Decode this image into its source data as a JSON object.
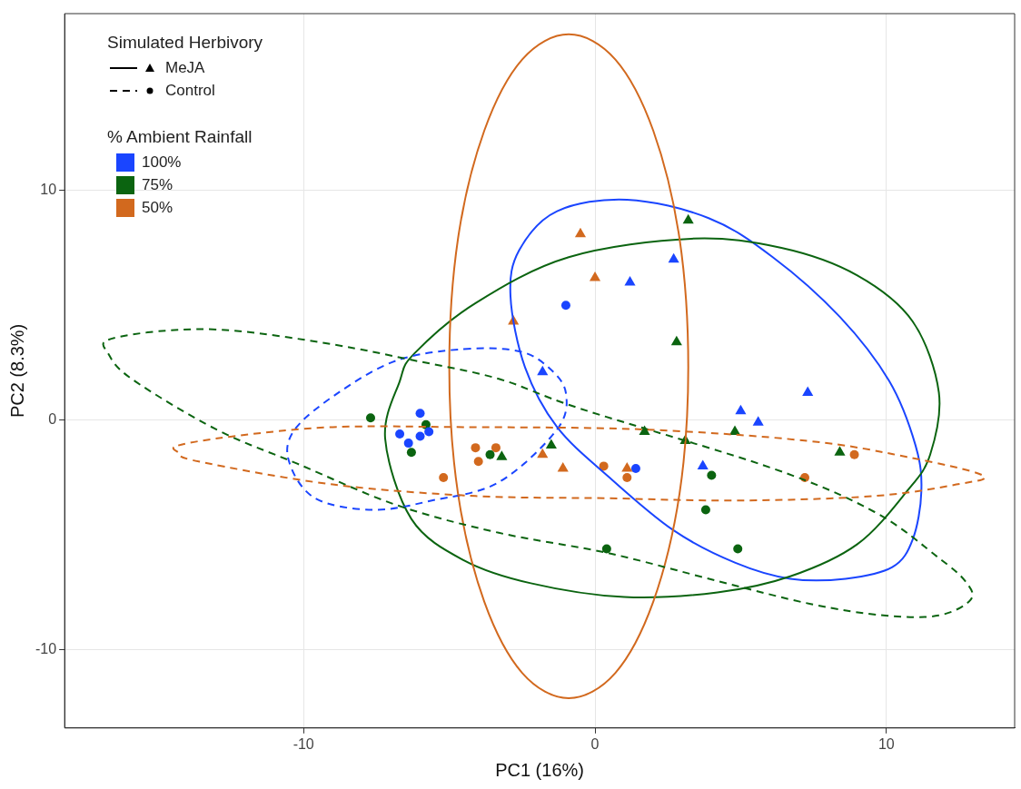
{
  "chart_data": {
    "type": "scatter",
    "xlabel": "PC1 (16%)",
    "ylabel": "PC2 (8.3%)",
    "xlim": [
      -18.2,
      14.4
    ],
    "ylim": [
      -13.4,
      17.7
    ],
    "xticks": [
      -10,
      0,
      10
    ],
    "yticks": [
      -10,
      0,
      10
    ],
    "grid": true,
    "annotations": [
      "Simulated Herbivory",
      "MeJA",
      "Control",
      "% Ambient Rainfall",
      "100%",
      "75%",
      "50%"
    ],
    "series": [
      {
        "type": "scatter",
        "color": "#1a45ff",
        "marker": "triangle",
        "x": [
          -1.8,
          1.2,
          2.7,
          5.0,
          5.6,
          7.3,
          3.7
        ],
        "values": [
          2.1,
          6.0,
          7.0,
          0.4,
          -0.1,
          1.2,
          -2.0
        ]
      },
      {
        "type": "scatter",
        "color": "#0b6410",
        "marker": "triangle",
        "x": [
          3.2,
          2.8,
          1.7,
          3.1,
          4.8,
          8.4,
          -1.5,
          -3.2
        ],
        "values": [
          8.7,
          3.4,
          -0.5,
          -0.9,
          -0.5,
          -1.4,
          -1.1,
          -1.6
        ]
      },
      {
        "type": "scatter",
        "color": "#d2691e",
        "marker": "triangle",
        "x": [
          -0.5,
          0.0,
          -2.8,
          -1.8,
          -1.1,
          1.1
        ],
        "values": [
          8.1,
          6.2,
          4.3,
          -1.5,
          -2.1,
          -2.1
        ]
      },
      {
        "type": "scatter",
        "color": "#1a45ff",
        "marker": "circle",
        "x": [
          -1.0,
          1.4,
          -6.0,
          -6.7,
          -6.4,
          -6.0,
          -5.7
        ],
        "values": [
          5.0,
          -2.1,
          0.3,
          -0.6,
          -1.0,
          -0.7,
          -0.5
        ]
      },
      {
        "type": "scatter",
        "color": "#0b6410",
        "marker": "circle",
        "x": [
          -7.7,
          -5.8,
          -6.3,
          -3.6,
          4.0,
          3.8,
          0.4,
          4.9
        ],
        "values": [
          0.1,
          -0.2,
          -1.4,
          -1.5,
          -2.4,
          -3.9,
          -5.6,
          -5.6
        ]
      },
      {
        "type": "scatter",
        "color": "#d2691e",
        "marker": "circle",
        "x": [
          -4.1,
          -3.4,
          -4.0,
          -5.2,
          0.3,
          1.1,
          7.2,
          8.9
        ],
        "values": [
          -1.2,
          -1.2,
          -1.8,
          -2.5,
          -2.0,
          -2.5,
          -2.5,
          -1.5
        ]
      }
    ]
  }
}
